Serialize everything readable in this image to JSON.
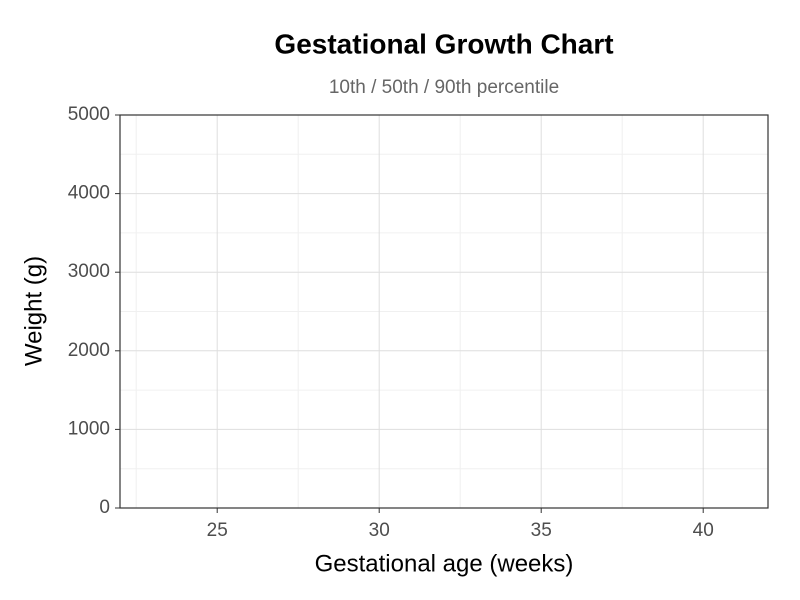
{
  "chart_data": {
    "type": "line",
    "title": "Gestational Growth Chart",
    "subtitle": "10th / 50th / 90th percentile",
    "xlabel": "Gestational age (weeks)",
    "ylabel": "Weight (g)",
    "xlim": [
      22,
      42
    ],
    "xticks": [
      25,
      30,
      35,
      40
    ],
    "ylim": [
      0,
      5000
    ],
    "yticks": [
      0,
      1000,
      2000,
      3000,
      4000,
      5000
    ],
    "grid": true
  }
}
